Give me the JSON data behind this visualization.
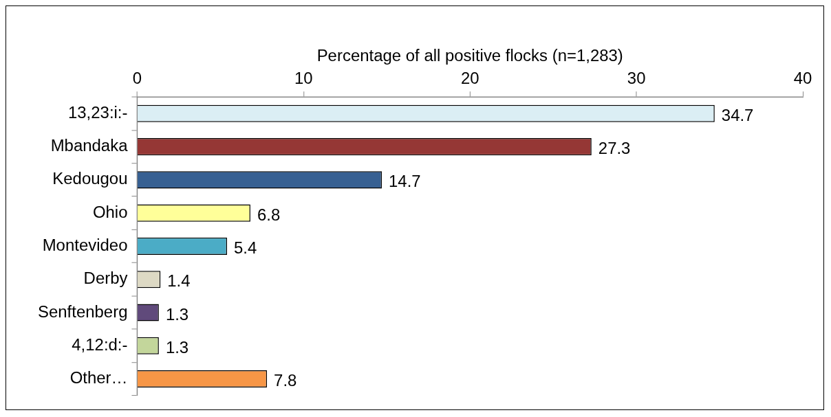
{
  "chart_data": {
    "type": "bar",
    "orientation": "horizontal",
    "xlabel": "Percentage of all positive flocks (n=1,283)",
    "categories": [
      "13,23:i:-",
      "Mbandaka",
      "Kedougou",
      "Ohio",
      "Montevideo",
      "Derby",
      "Senftenberg",
      "4,12:d:-",
      "Other…"
    ],
    "values": [
      34.7,
      27.3,
      14.7,
      6.8,
      5.4,
      1.4,
      1.3,
      1.3,
      7.8
    ],
    "colors": [
      "#dbeef4",
      "#953735",
      "#376092",
      "#ffff99",
      "#4bacc6",
      "#ddd9c4",
      "#604a7b",
      "#c3d69b",
      "#f79646"
    ],
    "xlim": [
      0,
      40
    ],
    "xticks": [
      0,
      10,
      20,
      30,
      40
    ],
    "data_labels": true,
    "grid": false,
    "legend": false
  }
}
